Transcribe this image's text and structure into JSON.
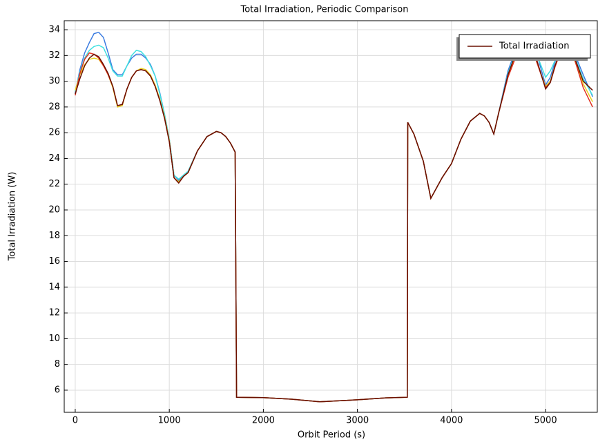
{
  "chart_data": {
    "type": "line",
    "title": "Total Irradiation, Periodic Comparison",
    "xlabel": "Orbit Period (s)",
    "ylabel": "Total Irradiation (W)",
    "xlim": [
      -117,
      5550
    ],
    "ylim": [
      4.28,
      34.7
    ],
    "xticks": [
      0,
      1000,
      2000,
      3000,
      4000,
      5000
    ],
    "yticks": [
      6,
      8,
      10,
      12,
      14,
      16,
      18,
      20,
      22,
      24,
      26,
      28,
      30,
      32,
      34
    ],
    "grid": true,
    "legend": "upper right",
    "x": [
      0,
      50,
      100,
      150,
      200,
      250,
      300,
      350,
      400,
      450,
      500,
      550,
      600,
      650,
      700,
      750,
      800,
      850,
      900,
      950,
      1000,
      1050,
      1100,
      1150,
      1200,
      1300,
      1400,
      1500,
      1550,
      1600,
      1650,
      1700,
      1715,
      2000,
      2300,
      2600,
      3000,
      3300,
      3530,
      3535,
      3600,
      3700,
      3780,
      3900,
      4000,
      4100,
      4200,
      4300,
      4350,
      4400,
      4450,
      4500,
      4600,
      4700,
      4800,
      4900,
      5000,
      5050,
      5100,
      5200,
      5300,
      5400,
      5500
    ],
    "series": [
      {
        "color": "#3a7be0",
        "values": [
          29.1,
          30.9,
          32.2,
          33.0,
          33.7,
          33.8,
          33.4,
          32.2,
          30.9,
          30.5,
          30.5,
          31.2,
          31.8,
          32.1,
          32.1,
          31.8,
          31.3,
          30.4,
          29.1,
          27.4,
          25.5,
          22.7,
          22.3,
          22.7,
          23.0,
          24.6,
          25.7,
          26.1,
          26.0,
          25.7,
          25.2,
          24.5,
          5.45,
          5.42,
          5.3,
          5.1,
          5.25,
          5.4,
          5.45,
          26.8,
          25.9,
          23.8,
          20.9,
          22.5,
          23.6,
          25.5,
          26.9,
          27.5,
          27.3,
          26.8,
          25.9,
          27.5,
          30.8,
          32.8,
          33.6,
          32.3,
          29.7,
          30.3,
          31.5,
          33.4,
          32.3,
          30.5,
          28.8
        ]
      },
      {
        "color": "#40e0e0",
        "values": [
          29.2,
          30.7,
          31.8,
          32.4,
          32.7,
          32.8,
          32.6,
          31.8,
          30.8,
          30.4,
          30.4,
          31.2,
          32.0,
          32.4,
          32.3,
          31.9,
          31.2,
          30.4,
          29.0,
          27.4,
          25.5,
          22.7,
          22.4,
          22.7,
          23.0,
          24.6,
          25.7,
          26.1,
          26.0,
          25.7,
          25.2,
          24.5,
          5.45,
          5.42,
          5.3,
          5.1,
          5.25,
          5.4,
          5.45,
          26.8,
          25.9,
          23.8,
          20.9,
          22.5,
          23.6,
          25.5,
          26.9,
          27.5,
          27.3,
          26.8,
          25.9,
          27.5,
          30.6,
          32.6,
          33.5,
          32.2,
          30.3,
          30.8,
          31.6,
          33.3,
          32.1,
          30.2,
          28.9
        ]
      },
      {
        "color": "#e8d020",
        "values": [
          29.3,
          30.5,
          31.3,
          31.7,
          31.8,
          31.7,
          31.2,
          30.5,
          29.5,
          28.0,
          28.1,
          29.4,
          30.3,
          30.8,
          31.0,
          30.9,
          30.5,
          29.7,
          28.6,
          27.2,
          25.4,
          22.5,
          22.2,
          22.6,
          22.9,
          24.6,
          25.7,
          26.1,
          26.0,
          25.7,
          25.2,
          24.5,
          5.45,
          5.42,
          5.3,
          5.1,
          5.25,
          5.4,
          5.45,
          26.8,
          25.9,
          23.8,
          20.9,
          22.5,
          23.6,
          25.5,
          26.9,
          27.5,
          27.3,
          26.8,
          25.9,
          27.5,
          30.4,
          32.3,
          33.0,
          31.6,
          29.6,
          30.0,
          31.2,
          33.0,
          31.8,
          29.8,
          28.4
        ]
      },
      {
        "color": "#e03020",
        "values": [
          28.9,
          30.6,
          31.7,
          32.2,
          32.1,
          31.8,
          31.2,
          30.5,
          29.6,
          28.1,
          28.2,
          29.4,
          30.3,
          30.8,
          30.9,
          30.8,
          30.4,
          29.6,
          28.5,
          27.1,
          25.3,
          22.5,
          22.1,
          22.6,
          22.9,
          24.6,
          25.7,
          26.1,
          26.0,
          25.7,
          25.2,
          24.5,
          5.45,
          5.42,
          5.3,
          5.1,
          5.25,
          5.4,
          5.45,
          26.8,
          25.9,
          23.8,
          20.9,
          22.5,
          23.6,
          25.5,
          26.9,
          27.5,
          27.3,
          26.8,
          25.9,
          27.5,
          30.3,
          32.2,
          33.0,
          31.6,
          29.5,
          29.9,
          31.1,
          33.1,
          31.9,
          29.5,
          28.0
        ]
      },
      {
        "name": "Total Irradiation",
        "color": "#6a1000",
        "values": [
          29.0,
          30.2,
          31.2,
          31.8,
          32.1,
          31.9,
          31.3,
          30.6,
          29.6,
          28.1,
          28.2,
          29.4,
          30.3,
          30.8,
          30.9,
          30.8,
          30.4,
          29.6,
          28.5,
          27.1,
          25.3,
          22.5,
          22.1,
          22.6,
          22.9,
          24.6,
          25.7,
          26.1,
          26.0,
          25.7,
          25.2,
          24.5,
          5.45,
          5.42,
          5.3,
          5.1,
          5.25,
          5.4,
          5.45,
          26.8,
          25.9,
          23.8,
          20.9,
          22.5,
          23.6,
          25.5,
          26.9,
          27.5,
          27.3,
          26.8,
          25.9,
          27.5,
          30.5,
          32.5,
          33.3,
          31.8,
          29.4,
          29.9,
          31.2,
          33.2,
          32.0,
          30.0,
          29.3
        ]
      }
    ]
  }
}
